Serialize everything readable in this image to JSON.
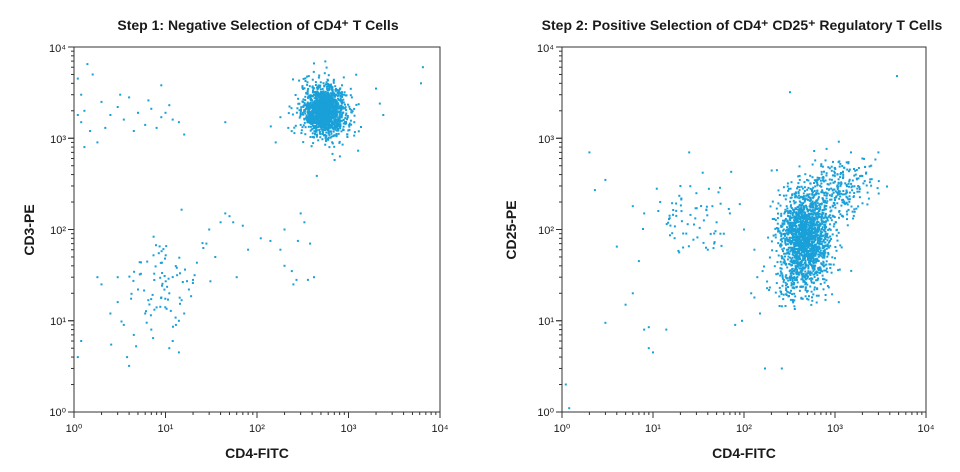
{
  "colors": {
    "dots": "#1aa0d8",
    "axis": "#333333",
    "text": "#1a1a1a"
  },
  "chart_data": [
    {
      "type": "scatter",
      "title": "Step 1: Negative Selection of CD4⁺ T Cells",
      "xlabel": "CD4-FITC",
      "ylabel": "CD3-PE",
      "xscale": "log",
      "yscale": "log",
      "xlim": [
        1,
        10000
      ],
      "ylim": [
        1,
        10000
      ],
      "tick_labels": [
        "10⁰",
        "10¹",
        "10²",
        "10³",
        "10⁴"
      ],
      "populations": [
        {
          "center": [
            550,
            2000
          ],
          "spread_log": [
            0.11,
            0.13
          ],
          "count": 1400
        },
        {
          "center": [
            550,
            2000
          ],
          "spread_log": [
            0.22,
            0.22
          ],
          "count": 110
        },
        {
          "center": [
            10,
            25
          ],
          "spread_log": [
            0.2,
            0.28
          ],
          "count": 75
        }
      ],
      "scattered_points": [
        [
          1.1,
          4500
        ],
        [
          1.2,
          3000
        ],
        [
          1.2,
          1500
        ],
        [
          1.3,
          2000
        ],
        [
          1.5,
          1200
        ],
        [
          1.4,
          6500
        ],
        [
          1.8,
          900
        ],
        [
          2,
          2500
        ],
        [
          1.6,
          5000
        ],
        [
          2.5,
          1800
        ],
        [
          3,
          2200
        ],
        [
          3.5,
          1600
        ],
        [
          4,
          2800
        ],
        [
          5,
          1900
        ],
        [
          6,
          1400
        ],
        [
          7,
          2100
        ],
        [
          8,
          1300
        ],
        [
          9,
          3800
        ],
        [
          10,
          1900
        ],
        [
          12,
          1600
        ],
        [
          1.1,
          1800
        ],
        [
          2.2,
          1300
        ],
        [
          3.2,
          3000
        ],
        [
          4.5,
          1200
        ],
        [
          14,
          1500
        ],
        [
          16,
          1100
        ],
        [
          1.3,
          800
        ],
        [
          6.5,
          2600
        ],
        [
          9,
          1700
        ],
        [
          11,
          2300
        ],
        [
          45,
          1500
        ],
        [
          180,
          1700
        ],
        [
          220,
          1300
        ],
        [
          2000,
          3500
        ],
        [
          2200,
          2400
        ],
        [
          6500,
          6000
        ],
        [
          6200,
          4000
        ],
        [
          2400,
          1800
        ],
        [
          300,
          1400
        ],
        [
          160,
          900
        ],
        [
          1.2,
          6
        ],
        [
          1.8,
          30
        ],
        [
          2,
          25
        ],
        [
          3,
          30
        ],
        [
          3.5,
          9
        ],
        [
          3.8,
          4
        ],
        [
          4,
          3.2
        ],
        [
          5,
          22
        ],
        [
          6,
          12
        ],
        [
          7,
          8
        ],
        [
          8,
          14
        ],
        [
          9,
          18
        ],
        [
          11,
          20
        ],
        [
          12,
          6
        ],
        [
          13,
          9
        ],
        [
          14,
          10
        ],
        [
          14,
          4.5
        ],
        [
          16,
          12
        ],
        [
          18,
          22
        ],
        [
          20,
          28
        ],
        [
          11,
          5
        ],
        [
          15,
          165
        ],
        [
          30,
          100
        ],
        [
          40,
          120
        ],
        [
          45,
          150
        ],
        [
          50,
          140
        ],
        [
          35,
          50
        ],
        [
          28,
          70
        ],
        [
          55,
          120
        ],
        [
          70,
          110
        ],
        [
          80,
          60
        ],
        [
          60,
          30
        ],
        [
          110,
          80
        ],
        [
          140,
          75
        ],
        [
          200,
          40
        ],
        [
          250,
          25
        ],
        [
          270,
          28
        ],
        [
          280,
          75
        ],
        [
          380,
          70
        ],
        [
          420,
          30
        ],
        [
          300,
          150
        ],
        [
          330,
          120
        ],
        [
          200,
          100
        ],
        [
          180,
          60
        ],
        [
          360,
          28
        ],
        [
          240,
          35
        ],
        [
          1.1,
          4
        ],
        [
          2.5,
          12
        ],
        [
          3,
          16
        ],
        [
          4.5,
          7
        ]
      ]
    },
    {
      "type": "scatter",
      "title": "Step 2: Positive Selection of CD4⁺ CD25⁺ Regulatory T Cells",
      "xlabel": "CD4-FITC",
      "ylabel": "CD25-PE",
      "xscale": "log",
      "yscale": "log",
      "xlim": [
        1,
        10000
      ],
      "ylim": [
        1,
        10000
      ],
      "tick_labels": [
        "10⁰",
        "10¹",
        "10²",
        "10³",
        "10⁴"
      ],
      "populations": [
        {
          "center": [
            470,
            80
          ],
          "spread_log": [
            0.14,
            0.26
          ],
          "count": 1700
        },
        {
          "center": [
            1100,
            280
          ],
          "spread_log": [
            0.2,
            0.16
          ],
          "count": 280
        },
        {
          "center": [
            320,
            25
          ],
          "spread_log": [
            0.12,
            0.12
          ],
          "count": 80
        },
        {
          "center": [
            28,
            120
          ],
          "spread_log": [
            0.22,
            0.2
          ],
          "count": 60
        }
      ],
      "scattered_points": [
        [
          4800,
          4800
        ],
        [
          320,
          3200
        ],
        [
          2,
          700
        ],
        [
          1.1,
          2
        ],
        [
          2.3,
          270
        ],
        [
          3,
          350
        ],
        [
          3,
          9.5
        ],
        [
          4,
          65
        ],
        [
          5,
          15
        ],
        [
          6,
          180
        ],
        [
          6,
          20
        ],
        [
          7,
          45
        ],
        [
          8,
          150
        ],
        [
          8,
          8
        ],
        [
          9,
          8.5
        ],
        [
          9,
          5
        ],
        [
          10,
          4.5
        ],
        [
          11,
          280
        ],
        [
          12,
          200
        ],
        [
          14,
          8
        ],
        [
          15,
          130
        ],
        [
          18,
          160
        ],
        [
          20,
          300
        ],
        [
          25,
          700
        ],
        [
          30,
          250
        ],
        [
          40,
          60
        ],
        [
          45,
          180
        ],
        [
          50,
          120
        ],
        [
          55,
          90
        ],
        [
          60,
          90
        ],
        [
          70,
          150
        ],
        [
          90,
          190
        ],
        [
          100,
          100
        ],
        [
          120,
          20
        ],
        [
          130,
          18
        ],
        [
          140,
          30
        ],
        [
          150,
          12
        ],
        [
          170,
          3
        ],
        [
          260,
          3
        ],
        [
          1.2,
          1.1
        ],
        [
          3000,
          700
        ],
        [
          2500,
          500
        ],
        [
          2000,
          600
        ],
        [
          1500,
          700
        ],
        [
          1800,
          300
        ],
        [
          2200,
          420
        ],
        [
          80,
          9
        ],
        [
          95,
          10
        ],
        [
          130,
          60
        ],
        [
          160,
          35
        ]
      ]
    }
  ]
}
